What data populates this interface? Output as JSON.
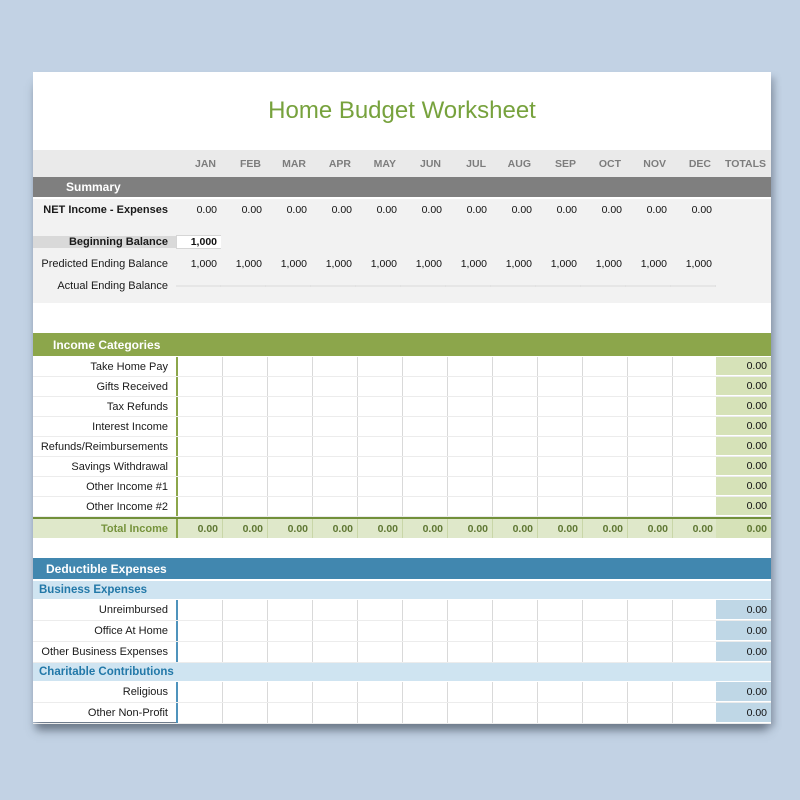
{
  "title": "Home Budget Worksheet",
  "months": [
    "JAN",
    "FEB",
    "MAR",
    "APR",
    "MAY",
    "JUN",
    "JUL",
    "AUG",
    "SEP",
    "OCT",
    "NOV",
    "DEC"
  ],
  "totals_label": "TOTALS",
  "summary": {
    "header": "Summary",
    "net_row": {
      "label": "NET Income - Expenses",
      "values": [
        "0.00",
        "0.00",
        "0.00",
        "0.00",
        "0.00",
        "0.00",
        "0.00",
        "0.00",
        "0.00",
        "0.00",
        "0.00",
        "0.00"
      ]
    },
    "beginning": {
      "label": "Beginning Balance",
      "value": "1,000"
    },
    "predicted": {
      "label": "Predicted Ending Balance",
      "values": [
        "1,000",
        "1,000",
        "1,000",
        "1,000",
        "1,000",
        "1,000",
        "1,000",
        "1,000",
        "1,000",
        "1,000",
        "1,000",
        "1,000"
      ]
    },
    "actual": {
      "label": "Actual Ending Balance"
    }
  },
  "income": {
    "header": "Income Categories",
    "rows": [
      {
        "label": "Take Home Pay",
        "total": "0.00"
      },
      {
        "label": "Gifts Received",
        "total": "0.00"
      },
      {
        "label": "Tax Refunds",
        "total": "0.00"
      },
      {
        "label": "Interest Income",
        "total": "0.00"
      },
      {
        "label": "Refunds/Reimbursements",
        "total": "0.00"
      },
      {
        "label": "Savings Withdrawal",
        "total": "0.00"
      },
      {
        "label": "Other Income #1",
        "total": "0.00"
      },
      {
        "label": "Other Income #2",
        "total": "0.00"
      }
    ],
    "total_row": {
      "label": "Total Income",
      "values": [
        "0.00",
        "0.00",
        "0.00",
        "0.00",
        "0.00",
        "0.00",
        "0.00",
        "0.00",
        "0.00",
        "0.00",
        "0.00",
        "0.00"
      ],
      "total": "0.00"
    }
  },
  "expenses": {
    "header": "Deductible Expenses",
    "groups": [
      {
        "subheader": "Business Expenses",
        "rows": [
          {
            "label": "Unreimbursed",
            "total": "0.00"
          },
          {
            "label": "Office At Home",
            "total": "0.00"
          },
          {
            "label": "Other Business Expenses",
            "total": "0.00"
          }
        ]
      },
      {
        "subheader": "Charitable Contributions",
        "rows": [
          {
            "label": "Religious",
            "total": "0.00"
          },
          {
            "label": "Other Non-Profit",
            "total": "0.00"
          }
        ]
      }
    ]
  },
  "colors": {
    "page_background": "#c2d2e4",
    "title_green": "#77a23d",
    "section_gray": "#7f7f7f",
    "section_green": "#8ca64b",
    "section_blue": "#4187af",
    "subheader_blue_bg": "#cfe4f1",
    "subheader_blue_text": "#2278a8",
    "totals_col_green": "#d6e2b8",
    "totals_col_blue": "#bfd7e6",
    "total_row_green_bg": "#dfe8ca",
    "total_row_text": "#76933c",
    "month_strip_bg": "#eaeaea"
  }
}
